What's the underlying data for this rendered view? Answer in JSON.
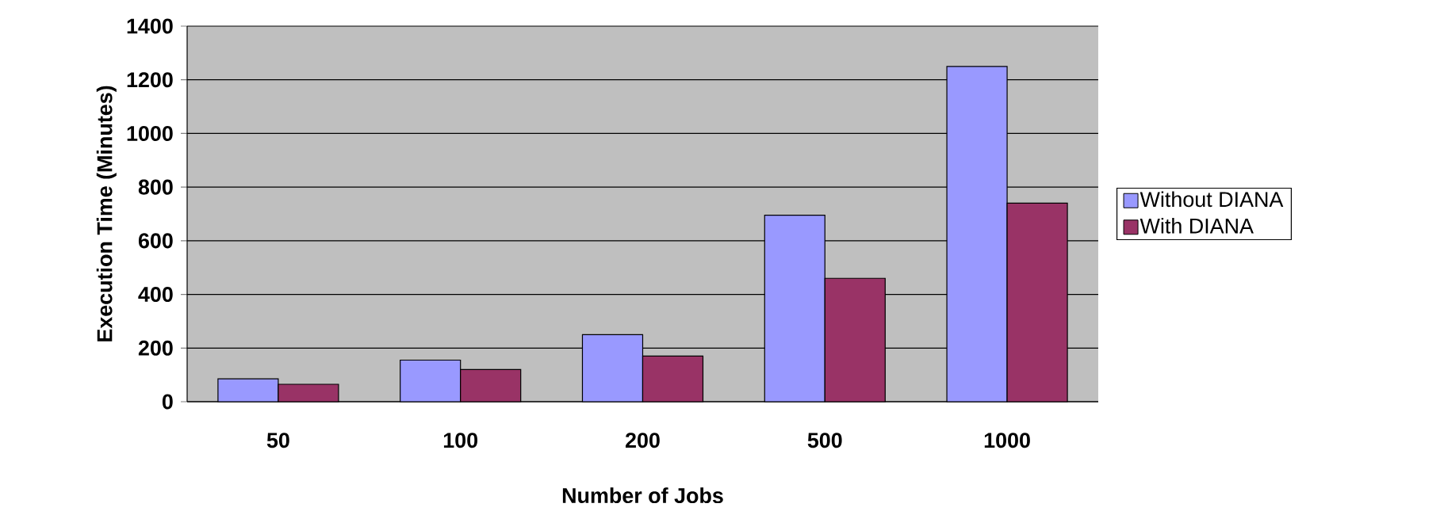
{
  "chart_data": {
    "type": "bar",
    "xlabel": "Number of Jobs",
    "ylabel": "Execution Time (Minutes)",
    "categories": [
      "50",
      "100",
      "200",
      "500",
      "1000"
    ],
    "series": [
      {
        "name": "Without DIANA",
        "color": "#9999ff",
        "values": [
          85,
          155,
          250,
          695,
          1250
        ]
      },
      {
        "name": "With DIANA",
        "color": "#993366",
        "values": [
          65,
          120,
          170,
          460,
          740
        ]
      }
    ],
    "ylim": [
      0,
      1400
    ],
    "yticks": [
      0,
      200,
      400,
      600,
      800,
      1000,
      1200,
      1400
    ],
    "grid": "y",
    "legend": "right"
  }
}
